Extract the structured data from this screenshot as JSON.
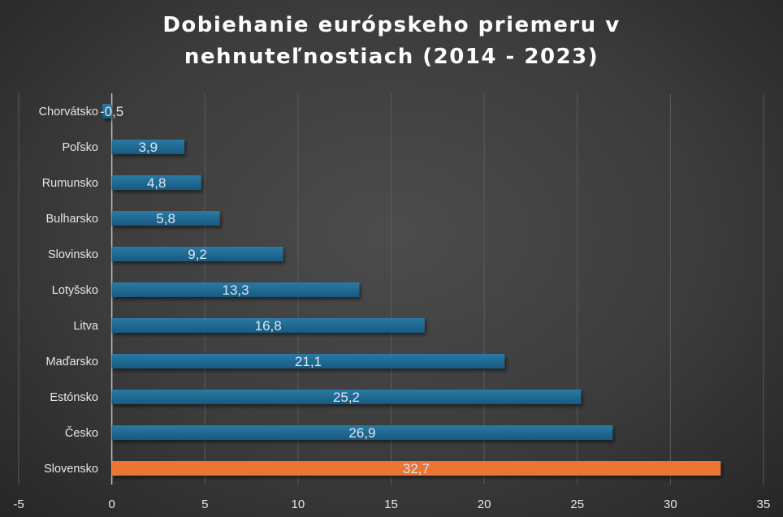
{
  "chart_data": {
    "type": "bar",
    "orientation": "horizontal",
    "title_lines": [
      "Dobiehanie európskeho priemeru v",
      "nehnuteľnostiach (2014 - 2023)"
    ],
    "categories": [
      "Chorvátsko",
      "Poľsko",
      "Rumunsko",
      "Bulharsko",
      "Slovinsko",
      "Lotyšsko",
      "Litva",
      "Maďarsko",
      "Estónsko",
      "Česko",
      "Slovensko"
    ],
    "values": [
      -0.5,
      3.9,
      4.8,
      5.8,
      9.2,
      13.3,
      16.8,
      21.1,
      25.2,
      26.9,
      32.7
    ],
    "data_labels": [
      "-0,5",
      "3,9",
      "4,8",
      "5,8",
      "9,2",
      "13,3",
      "16,8",
      "21,1",
      "25,2",
      "26,9",
      "32,7"
    ],
    "xlim": [
      -5,
      35
    ],
    "x_ticks": [
      -5,
      0,
      5,
      10,
      15,
      20,
      25,
      30,
      35
    ],
    "grid": true,
    "legend": "none",
    "colors": {
      "default": "#1e6a94",
      "highlight": "#ea7434",
      "highlight_category": "Slovensko"
    }
  }
}
